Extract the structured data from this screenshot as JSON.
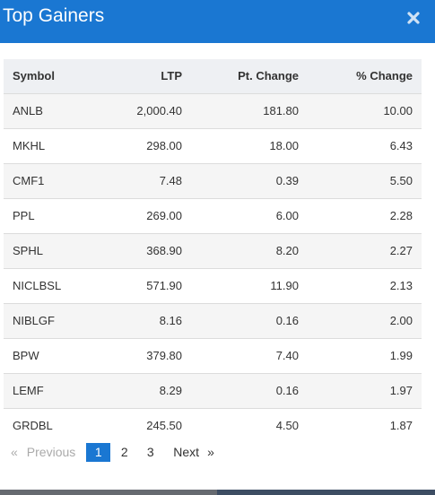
{
  "header": {
    "title": "Top Gainers",
    "close_icon": "close-icon"
  },
  "table": {
    "columns": [
      "Symbol",
      "LTP",
      "Pt. Change",
      "% Change"
    ],
    "rows": [
      {
        "symbol": "ANLB",
        "ltp": "2,000.40",
        "pt_change": "181.80",
        "pct_change": "10.00"
      },
      {
        "symbol": "MKHL",
        "ltp": "298.00",
        "pt_change": "18.00",
        "pct_change": "6.43"
      },
      {
        "symbol": "CMF1",
        "ltp": "7.48",
        "pt_change": "0.39",
        "pct_change": "5.50"
      },
      {
        "symbol": "PPL",
        "ltp": "269.00",
        "pt_change": "6.00",
        "pct_change": "2.28"
      },
      {
        "symbol": "SPHL",
        "ltp": "368.90",
        "pt_change": "8.20",
        "pct_change": "2.27"
      },
      {
        "symbol": "NICLBSL",
        "ltp": "571.90",
        "pt_change": "11.90",
        "pct_change": "2.13"
      },
      {
        "symbol": "NIBLGF",
        "ltp": "8.16",
        "pt_change": "0.16",
        "pct_change": "2.00"
      },
      {
        "symbol": "BPW",
        "ltp": "379.80",
        "pt_change": "7.40",
        "pct_change": "1.99"
      },
      {
        "symbol": "LEMF",
        "ltp": "8.29",
        "pt_change": "0.16",
        "pct_change": "1.97"
      },
      {
        "symbol": "GRDBL",
        "ltp": "245.50",
        "pt_change": "4.50",
        "pct_change": "1.87"
      }
    ]
  },
  "pagination": {
    "first_arrow": "«",
    "previous_label": "Previous",
    "pages": [
      "1",
      "2",
      "3"
    ],
    "active_page": "1",
    "next_label": "Next",
    "last_arrow": "»"
  },
  "colors": {
    "header_bg": "#1a77d2",
    "gain_green": "#22882e",
    "active_page_bg": "#1a77d2"
  }
}
